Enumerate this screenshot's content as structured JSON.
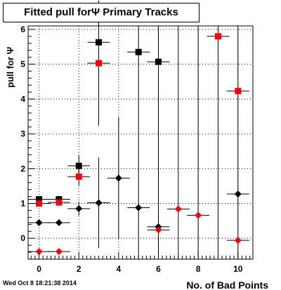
{
  "header": {
    "title": "Fitted pull forΨ  Primary Tracks"
  },
  "footer": {
    "timestamp": "Wed Oct  8 18:21:38 2014"
  },
  "chart_data": {
    "type": "scatter",
    "title": "Fitted pull forΨ  Primary Tracks",
    "xlabel": "No. of Bad Points",
    "ylabel": "pull for Ψ",
    "xlim": [
      -0.55,
      10.75
    ],
    "ylim": [
      -0.6,
      6.1
    ],
    "x_ticks": [
      0,
      2,
      4,
      6,
      8,
      10
    ],
    "y_ticks": [
      0,
      1,
      2,
      3,
      4,
      5,
      6
    ],
    "grid": true,
    "series": [
      {
        "marker": "square",
        "color": "#000000",
        "points": [
          {
            "x": 0,
            "y": 1.12,
            "yerr": 0.05
          },
          {
            "x": 1,
            "y": 1.12,
            "yerr": 0.05
          },
          {
            "x": 2,
            "y": 2.08,
            "yerr": 0.3
          },
          {
            "x": 3,
            "y": 5.63,
            "yerr": 0
          },
          {
            "x": 5,
            "y": 5.35,
            "yerr": 0
          },
          {
            "x": 6,
            "y": 5.07,
            "yerr": 0
          }
        ]
      },
      {
        "marker": "square",
        "color": "#ff0000",
        "points": [
          {
            "x": 0,
            "y": 1.0,
            "yerr": 0.05
          },
          {
            "x": 1,
            "y": 1.03,
            "yerr": 0.05
          },
          {
            "x": 2,
            "y": 1.77,
            "yerr": 0.25
          },
          {
            "x": 3,
            "y": 5.03,
            "yerr": 1.8
          },
          {
            "x": 9,
            "y": 5.8,
            "yerr": 0
          },
          {
            "x": 10,
            "y": 4.23,
            "yerr": 0
          }
        ]
      },
      {
        "marker": "diamond",
        "color": "#000000",
        "points": [
          {
            "x": 0,
            "y": 0.45,
            "yerr": 0.05
          },
          {
            "x": 1,
            "y": 0.45,
            "yerr": 0.05
          },
          {
            "x": 2,
            "y": 0.85,
            "yerr": 0.2
          },
          {
            "x": 3,
            "y": 1.02,
            "yerr": 1.3
          },
          {
            "x": 4,
            "y": 1.73,
            "yerr": 1.75
          },
          {
            "x": 5,
            "y": 0.88,
            "yerr": 0
          },
          {
            "x": 6,
            "y": 0.33,
            "yerr": 0.1
          },
          {
            "x": 10,
            "y": 1.27,
            "yerr": 0
          }
        ]
      },
      {
        "marker": "diamond",
        "color": "#ff0000",
        "points": [
          {
            "x": 0,
            "y": -0.38,
            "yerr": 0
          },
          {
            "x": 1,
            "y": -0.38,
            "yerr": 0
          },
          {
            "x": 6,
            "y": 0.24,
            "yerr": 0
          },
          {
            "x": 7,
            "y": 0.84,
            "yerr": 0
          },
          {
            "x": 8,
            "y": 0.66,
            "yerr": 0
          },
          {
            "x": 10,
            "y": -0.06,
            "yerr": 0
          }
        ]
      }
    ],
    "full_range_error_bars_x": [
      5,
      6,
      7,
      8,
      9,
      10
    ]
  }
}
